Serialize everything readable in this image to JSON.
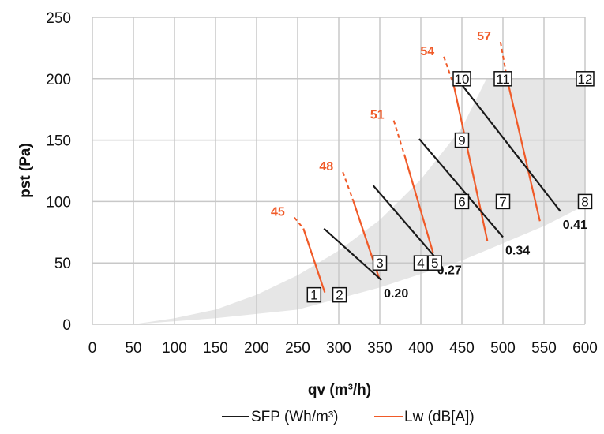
{
  "chart_data": {
    "type": "line",
    "title": "",
    "xlabel": "qv (m³/h)",
    "ylabel": "pst (Pa)",
    "xlim": [
      0,
      600
    ],
    "ylim": [
      0,
      250
    ],
    "x_ticks": [
      "0",
      "50",
      "100",
      "150",
      "200",
      "250",
      "300",
      "350",
      "400",
      "450",
      "500",
      "550",
      "600"
    ],
    "y_ticks": [
      "0",
      "50",
      "100",
      "150",
      "200",
      "250"
    ],
    "grid": true,
    "colors": {
      "sfp": "#1a1a1a",
      "lw": "#f05a28",
      "region": "#e6e6e6",
      "grid": "#c8c8c8"
    },
    "legend": {
      "placement": "bottom",
      "entries": [
        {
          "label": "SFP (Wh/m³)",
          "color": "#1a1a1a"
        },
        {
          "label": "Lw (dB[A])",
          "color": "#f05a28"
        }
      ]
    },
    "operating_region": {
      "lower": [
        [
          50,
          0
        ],
        [
          150,
          5
        ],
        [
          250,
          12
        ],
        [
          350,
          30
        ],
        [
          450,
          52
        ],
        [
          550,
          80
        ],
        [
          600,
          97
        ]
      ],
      "upper": [
        [
          50,
          0
        ],
        [
          100,
          5
        ],
        [
          150,
          12
        ],
        [
          200,
          24
        ],
        [
          250,
          40
        ],
        [
          300,
          60
        ],
        [
          350,
          85
        ],
        [
          400,
          118
        ],
        [
          450,
          160
        ],
        [
          480,
          200
        ],
        [
          600,
          200
        ]
      ]
    },
    "sfp_series": [
      {
        "label": "0.20",
        "points": [
          [
            282,
            78
          ],
          [
            352,
            36
          ]
        ]
      },
      {
        "label": "0.27",
        "points": [
          [
            342,
            113
          ],
          [
            417,
            55
          ]
        ]
      },
      {
        "label": "0.34",
        "points": [
          [
            398,
            151
          ],
          [
            500,
            71
          ]
        ]
      },
      {
        "label": "0.41",
        "points": [
          [
            450,
            195
          ],
          [
            570,
            92
          ]
        ]
      }
    ],
    "lw_series": [
      {
        "label": "45",
        "solid": [
          [
            257,
            78
          ],
          [
            283,
            26
          ]
        ],
        "dashed": [
          [
            246,
            87
          ],
          [
            257,
            78
          ]
        ]
      },
      {
        "label": "48",
        "solid": [
          [
            318,
            100
          ],
          [
            349,
            38
          ]
        ],
        "dashed": [
          [
            305,
            124
          ],
          [
            318,
            100
          ]
        ]
      },
      {
        "label": "51",
        "solid": [
          [
            380,
            138
          ],
          [
            415,
            58
          ]
        ],
        "dashed": [
          [
            367,
            166
          ],
          [
            380,
            138
          ]
        ]
      },
      {
        "label": "54",
        "solid": [
          [
            440,
            195
          ],
          [
            481,
            68
          ]
        ],
        "dashed": [
          [
            428,
            218
          ],
          [
            440,
            195
          ]
        ]
      },
      {
        "label": "57",
        "solid": [
          [
            505,
            200
          ],
          [
            545,
            84
          ]
        ],
        "dashed": [
          [
            497,
            230
          ],
          [
            505,
            200
          ]
        ]
      }
    ],
    "operating_points": [
      {
        "label": "1",
        "x": 270,
        "y": 24
      },
      {
        "label": "2",
        "x": 301,
        "y": 24
      },
      {
        "label": "3",
        "x": 350,
        "y": 50
      },
      {
        "label": "4",
        "x": 400,
        "y": 50
      },
      {
        "label": "5",
        "x": 417,
        "y": 50
      },
      {
        "label": "6",
        "x": 450,
        "y": 100
      },
      {
        "label": "7",
        "x": 500,
        "y": 100
      },
      {
        "label": "8",
        "x": 600,
        "y": 100
      },
      {
        "label": "9",
        "x": 450,
        "y": 150
      },
      {
        "label": "10",
        "x": 450,
        "y": 200
      },
      {
        "label": "11",
        "x": 500,
        "y": 200
      },
      {
        "label": "12",
        "x": 600,
        "y": 200
      }
    ]
  }
}
